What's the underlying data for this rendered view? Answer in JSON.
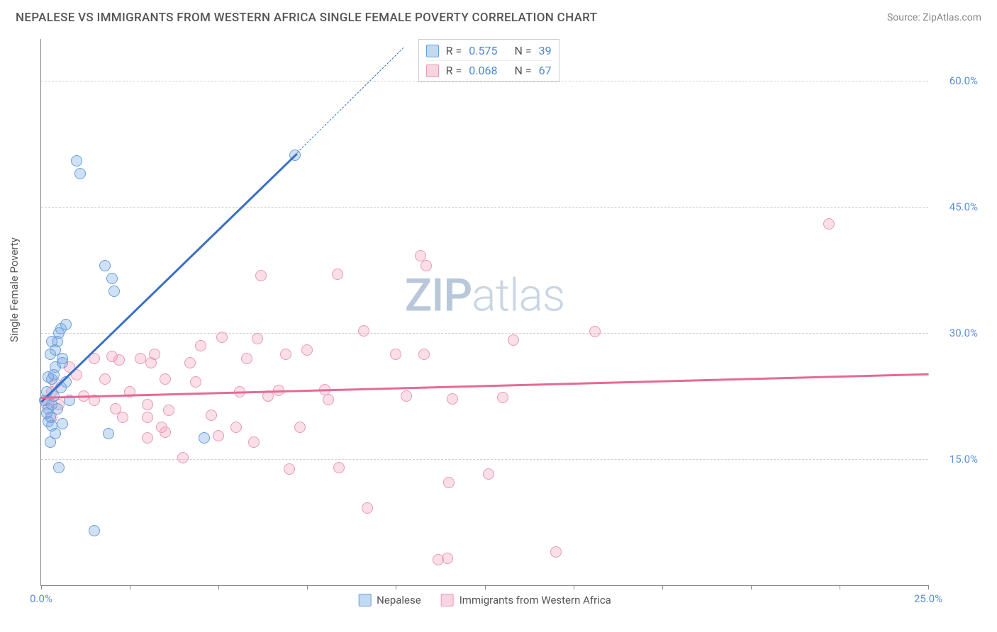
{
  "header": {
    "title": "NEPALESE VS IMMIGRANTS FROM WESTERN AFRICA SINGLE FEMALE POVERTY CORRELATION CHART",
    "source": "Source: ZipAtlas.com"
  },
  "chart": {
    "type": "scatter",
    "y_axis_title": "Single Female Poverty",
    "xlim": [
      0,
      25
    ],
    "ylim": [
      0,
      65
    ],
    "x_ticks": [
      0,
      2.5,
      5,
      7.5,
      10,
      12.5,
      15,
      17.5,
      20,
      22.5,
      25
    ],
    "x_tick_labels": {
      "0": "0.0%",
      "25": "25.0%"
    },
    "y_ticks": [
      15,
      30,
      45,
      60
    ],
    "y_tick_labels": {
      "15": "15.0%",
      "30": "30.0%",
      "45": "45.0%",
      "60": "60.0%"
    },
    "grid_color": "#d0d0d0",
    "background_color": "#ffffff",
    "axis_color": "#888888",
    "watermark": {
      "z": "ZIP",
      "a": "atlas"
    },
    "series": {
      "blue": {
        "label": "Nepalese",
        "color_fill": "rgba(120,170,230,0.35)",
        "color_stroke": "#6a9fd8",
        "trend_color": "#3a6fc8",
        "trend": {
          "x1": 0,
          "y1": 22,
          "x2": 7.2,
          "y2": 51.5,
          "x2_dash": 10.2,
          "y2_dash": 64
        },
        "R": "0.575",
        "N": "39",
        "points": [
          [
            0.1,
            22
          ],
          [
            0.2,
            21
          ],
          [
            0.15,
            23
          ],
          [
            0.3,
            24.5
          ],
          [
            0.25,
            20
          ],
          [
            0.3,
            19
          ],
          [
            0.35,
            25
          ],
          [
            0.4,
            18
          ],
          [
            0.4,
            26
          ],
          [
            0.5,
            30
          ],
          [
            0.55,
            30.5
          ],
          [
            0.7,
            24.2
          ],
          [
            0.6,
            27
          ],
          [
            0.6,
            26.5
          ],
          [
            0.8,
            22
          ],
          [
            0.2,
            19.5
          ],
          [
            0.3,
            21.5
          ],
          [
            0.4,
            28
          ],
          [
            0.45,
            29
          ],
          [
            0.55,
            23.5
          ],
          [
            1.0,
            50.5
          ],
          [
            1.1,
            49
          ],
          [
            1.8,
            38
          ],
          [
            1.9,
            18
          ],
          [
            2.0,
            36.5
          ],
          [
            2.05,
            35
          ],
          [
            4.6,
            17.5
          ],
          [
            0.5,
            14
          ],
          [
            1.5,
            6.5
          ],
          [
            7.15,
            51.2
          ],
          [
            0.25,
            17
          ],
          [
            0.15,
            20.5
          ],
          [
            0.35,
            22.5
          ],
          [
            0.25,
            27.5
          ],
          [
            0.3,
            29
          ],
          [
            0.7,
            31
          ],
          [
            0.6,
            19.2
          ],
          [
            0.2,
            24.8
          ],
          [
            0.45,
            21.0
          ]
        ]
      },
      "pink": {
        "label": "Immigrants from Western Africa",
        "color_fill": "rgba(240,160,190,0.35)",
        "color_stroke": "#e89ab5",
        "trend_color": "#e56a95",
        "trend": {
          "x1": 0,
          "y1": 22.5,
          "x2": 25,
          "y2": 25.3
        },
        "R": "0.068",
        "N": "67",
        "points": [
          [
            0.2,
            22
          ],
          [
            0.3,
            23
          ],
          [
            0.15,
            21.5
          ],
          [
            0.4,
            24
          ],
          [
            1.5,
            22
          ],
          [
            1.5,
            27
          ],
          [
            2.1,
            21
          ],
          [
            2.2,
            26.8
          ],
          [
            2.3,
            20
          ],
          [
            2.8,
            27
          ],
          [
            3.0,
            21.5
          ],
          [
            3.1,
            26.5
          ],
          [
            3.2,
            27.5
          ],
          [
            3.5,
            24.5
          ],
          [
            3.5,
            18.2
          ],
          [
            3.6,
            20.8
          ],
          [
            4.2,
            26.5
          ],
          [
            4.35,
            24.2
          ],
          [
            4.5,
            28.5
          ],
          [
            5.0,
            17.8
          ],
          [
            5.1,
            29.5
          ],
          [
            5.5,
            18.8
          ],
          [
            6.1,
            29.3
          ],
          [
            6.4,
            22.5
          ],
          [
            6.7,
            23.2
          ],
          [
            6.9,
            27.5
          ],
          [
            6.2,
            36.8
          ],
          [
            7.3,
            18.8
          ],
          [
            7.5,
            28
          ],
          [
            8.0,
            23.3
          ],
          [
            8.1,
            22.1
          ],
          [
            8.35,
            37
          ],
          [
            8.4,
            14
          ],
          [
            9.1,
            30.3
          ],
          [
            9.2,
            9.2
          ],
          [
            10.0,
            27.5
          ],
          [
            10.3,
            22.5
          ],
          [
            10.7,
            39.2
          ],
          [
            10.8,
            27.5
          ],
          [
            10.85,
            38
          ],
          [
            11.2,
            3.0
          ],
          [
            11.45,
            3.2
          ],
          [
            11.5,
            12.2
          ],
          [
            11.6,
            22.2
          ],
          [
            12.6,
            13.2
          ],
          [
            13.0,
            22.3
          ],
          [
            13.3,
            29.2
          ],
          [
            14.5,
            4.0
          ],
          [
            15.6,
            30.2
          ],
          [
            22.2,
            43.0
          ],
          [
            4.0,
            15.2
          ],
          [
            6.0,
            17.0
          ],
          [
            1.0,
            25
          ],
          [
            1.2,
            22.5
          ],
          [
            1.8,
            24.5
          ],
          [
            2.5,
            23
          ],
          [
            3.0,
            20
          ],
          [
            3.0,
            17.5
          ],
          [
            0.3,
            20
          ],
          [
            5.8,
            27
          ],
          [
            5.6,
            23
          ],
          [
            4.8,
            20.2
          ],
          [
            7.0,
            13.8
          ],
          [
            3.4,
            18.8
          ],
          [
            2.0,
            27.2
          ],
          [
            0.5,
            21.5
          ],
          [
            0.8,
            26.0
          ]
        ]
      }
    },
    "info_box": {
      "rows": [
        {
          "swatch": "blue",
          "R_label": "R =",
          "R_val": "0.575",
          "N_label": "N =",
          "N_val": "39"
        },
        {
          "swatch": "pink",
          "R_label": "R =",
          "R_val": "0.068",
          "N_label": "N =",
          "N_val": "67"
        }
      ]
    }
  }
}
